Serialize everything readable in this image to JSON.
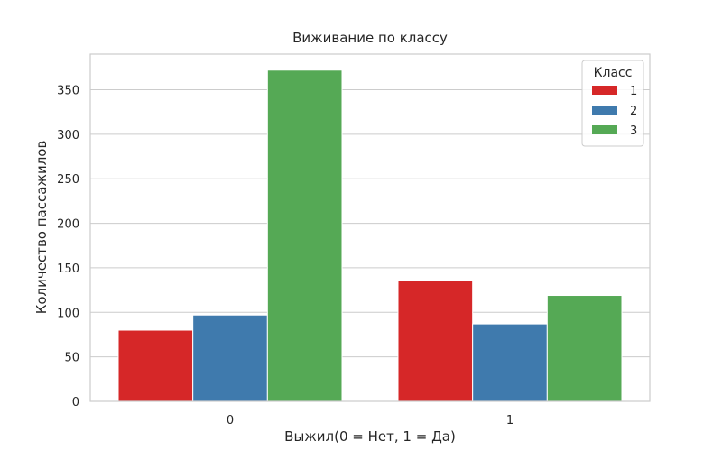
{
  "chart_data": {
    "type": "bar",
    "title": "Виживание по классу",
    "xlabel": "Выжил(0 = Нет, 1 = Да)",
    "ylabel": "Количество пассажилов",
    "categories": [
      "0",
      "1"
    ],
    "series": [
      {
        "name": "1",
        "color": "#d62728",
        "values": [
          80,
          136
        ]
      },
      {
        "name": "2",
        "color": "#3f7aad",
        "values": [
          97,
          87
        ]
      },
      {
        "name": "3",
        "color": "#55a955",
        "values": [
          372,
          119
        ]
      }
    ],
    "yticks": [
      0,
      50,
      100,
      150,
      200,
      250,
      300,
      350
    ],
    "ylim": [
      0,
      390
    ],
    "grid": true,
    "legend": {
      "title": "Класс",
      "position": "top-right"
    }
  }
}
